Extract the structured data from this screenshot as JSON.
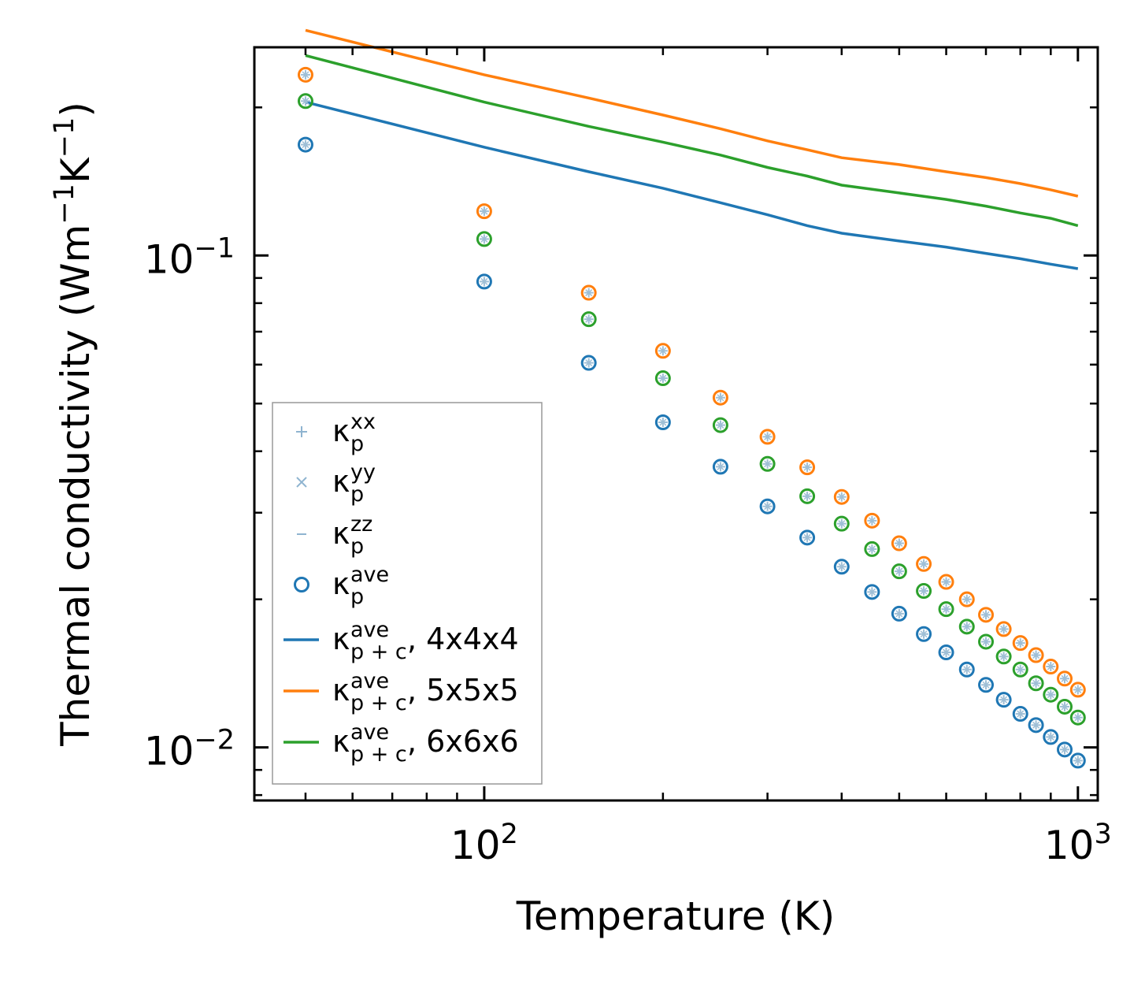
{
  "chart_data": {
    "type": "scatter",
    "xscale": "log",
    "yscale": "log",
    "xlim": [
      41,
      1080
    ],
    "ylim": [
      0.0078,
      0.265
    ],
    "xlabel": "Temperature (K)",
    "ylabel": {
      "main": "Thermal conductivity (Wm",
      "sup1": "−1",
      "mid": "K",
      "sup2": "−1",
      "end": ")"
    },
    "xticks": [
      {
        "value": 100,
        "base": "10",
        "exp": "2"
      },
      {
        "value": 1000,
        "base": "10",
        "exp": "3"
      }
    ],
    "yticks": [
      {
        "value": 0.1,
        "base": "10",
        "exp": "−1"
      },
      {
        "value": 0.01,
        "base": "10",
        "exp": "−2"
      }
    ],
    "x": [
      50,
      100,
      150,
      200,
      250,
      300,
      350,
      400,
      450,
      500,
      550,
      600,
      650,
      700,
      750,
      800,
      850,
      900,
      950,
      1000
    ],
    "series": [
      {
        "name": "4x4x4",
        "color": "#1f77b4",
        "points": [
          0.168,
          0.0885,
          0.0605,
          0.0458,
          0.0372,
          0.0309,
          0.0267,
          0.0233,
          0.0207,
          0.0187,
          0.017,
          0.0156,
          0.0144,
          0.0134,
          0.0125,
          0.0117,
          0.0111,
          0.0105,
          0.0099,
          0.0094
        ],
        "line": [
          0.205,
          0.166,
          0.148,
          0.137,
          0.128,
          0.121,
          0.115,
          0.111,
          0.107,
          0.104,
          0.101,
          0.0985,
          0.096,
          0.094
        ]
      },
      {
        "name": "5x5x5",
        "color": "#ff7f0e",
        "points": [
          0.233,
          0.123,
          0.084,
          0.064,
          0.0514,
          0.0428,
          0.0371,
          0.0323,
          0.0289,
          0.026,
          0.0236,
          0.0217,
          0.02,
          0.0186,
          0.0174,
          0.0163,
          0.0154,
          0.0146,
          0.0138,
          0.0131
        ],
        "line": [
          0.287,
          0.233,
          0.209,
          0.193,
          0.181,
          0.171,
          0.164,
          0.158,
          0.153,
          0.148,
          0.144,
          0.14,
          0.136,
          0.132
        ]
      },
      {
        "name": "6x6x6",
        "color": "#2ca02c",
        "points": [
          0.206,
          0.108,
          0.0742,
          0.0563,
          0.0452,
          0.0377,
          0.0324,
          0.0285,
          0.0253,
          0.0228,
          0.0208,
          0.0191,
          0.0176,
          0.0164,
          0.0153,
          0.0144,
          0.0135,
          0.0128,
          0.0121,
          0.0115
        ],
        "line": [
          0.255,
          0.205,
          0.183,
          0.17,
          0.16,
          0.151,
          0.145,
          0.139,
          0.134,
          0.13,
          0.126,
          0.122,
          0.119,
          0.115
        ]
      }
    ],
    "line_x": [
      50,
      100,
      150,
      200,
      250,
      300,
      350,
      400,
      500,
      600,
      700,
      800,
      900,
      1000
    ],
    "legend": {
      "location": "lower-left",
      "entries": [
        {
          "id": "xx",
          "marker": "+",
          "kappa": "κ",
          "sub": "p",
          "sup": "xx",
          "suffix": "",
          "color": "#8fb4d0"
        },
        {
          "id": "yy",
          "marker": "×",
          "kappa": "κ",
          "sub": "p",
          "sup": "yy",
          "suffix": "",
          "color": "#8fb4d0"
        },
        {
          "id": "zz",
          "marker": "−",
          "kappa": "κ",
          "sub": "p",
          "sup": "zz",
          "suffix": "",
          "color": "#8fb4d0"
        },
        {
          "id": "ave",
          "marker": "o",
          "kappa": "κ",
          "sub": "p",
          "sup": "ave",
          "suffix": "",
          "color": "#1f77b4"
        },
        {
          "id": "line4",
          "marker": "line",
          "kappa": "κ",
          "sub": "p + c",
          "sup": "ave",
          "suffix": ", 4x4x4",
          "color": "#1f77b4"
        },
        {
          "id": "line5",
          "marker": "line",
          "kappa": "κ",
          "sub": "p + c",
          "sup": "ave",
          "suffix": ", 5x5x5",
          "color": "#ff7f0e"
        },
        {
          "id": "line6",
          "marker": "line",
          "kappa": "κ",
          "sub": "p + c",
          "sup": "ave",
          "suffix": ", 6x6x6",
          "color": "#2ca02c"
        }
      ]
    }
  }
}
